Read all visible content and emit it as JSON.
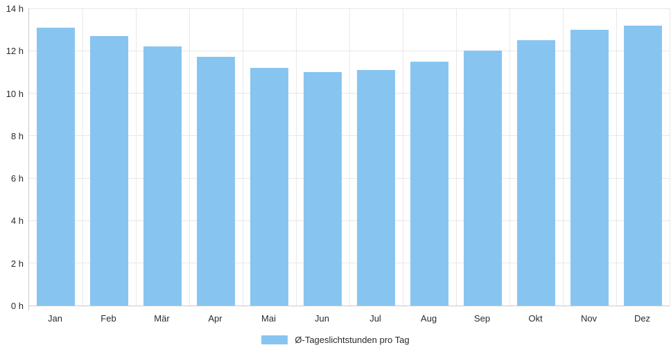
{
  "chart_data": {
    "type": "bar",
    "title": "",
    "categories": [
      "Jan",
      "Feb",
      "Mär",
      "Apr",
      "Mai",
      "Jun",
      "Jul",
      "Aug",
      "Sep",
      "Okt",
      "Nov",
      "Dez"
    ],
    "series": [
      {
        "name": "Ø-Tageslichtstunden pro Tag",
        "values": [
          13.1,
          12.7,
          12.2,
          11.7,
          11.2,
          11.0,
          11.1,
          11.5,
          12.0,
          12.5,
          13.0,
          13.2
        ]
      }
    ],
    "xlabel": "",
    "ylabel": "",
    "ylim": [
      0,
      14
    ],
    "y_ticks": [
      {
        "value": 0,
        "label": "0 h"
      },
      {
        "value": 2,
        "label": "2 h"
      },
      {
        "value": 4,
        "label": "4 h"
      },
      {
        "value": 6,
        "label": "6 h"
      },
      {
        "value": 8,
        "label": "8 h"
      },
      {
        "value": 10,
        "label": "10 h"
      },
      {
        "value": 12,
        "label": "12 h"
      },
      {
        "value": 14,
        "label": "14 h"
      }
    ],
    "grid": true,
    "legend_position": "bottom",
    "colors": {
      "bar": "#87c5f0",
      "grid": "#e8e8e8",
      "axis": "#c9c9c9",
      "label": "#2a2a2a"
    }
  },
  "legend": {
    "label": "Ø-Tageslichtstunden pro Tag",
    "swatch_color": "#87c5f0"
  }
}
